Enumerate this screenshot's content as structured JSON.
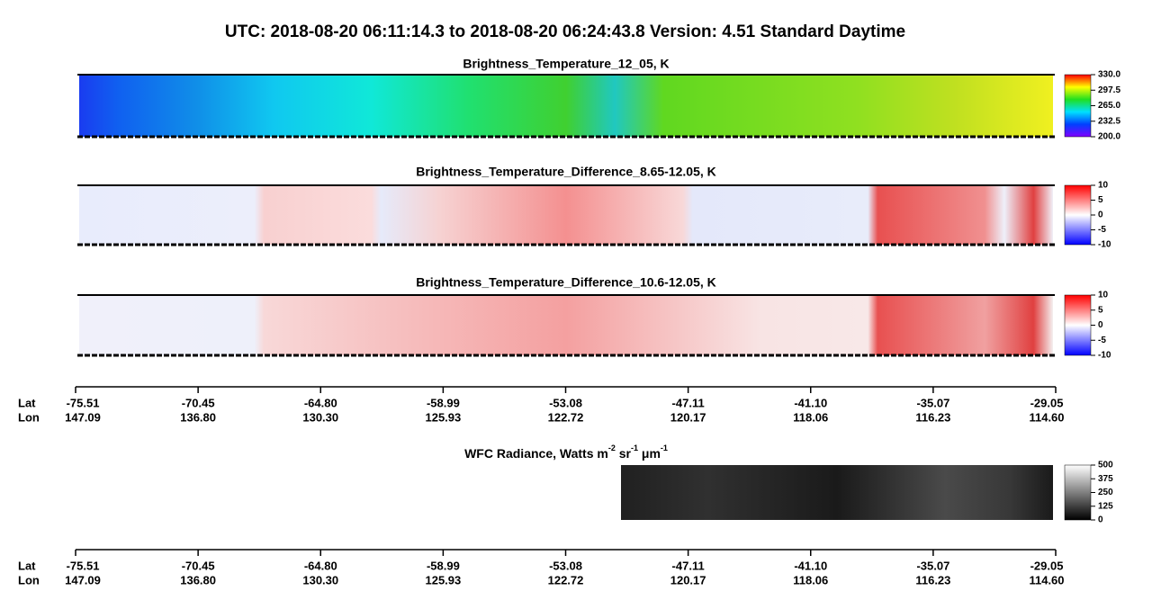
{
  "title": "UTC:  2018-08-20   06:11:14.3  to  2018-08-20   06:24:43.8    Version: 4.51  Standard Daytime",
  "panels": [
    {
      "title": "Brightness_Temperature_12_05, K",
      "colorbar": {
        "lim": [
          200,
          330
        ],
        "ticks": [
          {
            "value": 330,
            "label": "330.0"
          },
          {
            "value": 297.5,
            "label": "297.5"
          },
          {
            "value": 265,
            "label": "265.0"
          },
          {
            "value": 232.5,
            "label": "232.5"
          },
          {
            "value": 200,
            "label": "200.0"
          }
        ]
      }
    },
    {
      "title": "Brightness_Temperature_Difference_8.65-12.05, K",
      "colorbar": {
        "lim": [
          -10,
          10
        ],
        "ticks": [
          10,
          5,
          0,
          -5,
          -10
        ]
      }
    },
    {
      "title": "Brightness_Temperature_Difference_10.6-12.05, K",
      "colorbar": {
        "lim": [
          -10,
          10
        ],
        "ticks": [
          10,
          5,
          0,
          -5,
          -10
        ]
      }
    },
    {
      "title_parts": [
        "WFC Radiance, Watts m",
        "-2",
        " sr",
        "-1",
        " μm",
        "-1"
      ],
      "colorbar": {
        "lim": [
          0,
          500
        ],
        "ticks": [
          500,
          375,
          250,
          125,
          0
        ]
      }
    }
  ],
  "axes": [
    {
      "lat_label": "Lat",
      "lon_label": "Lon",
      "lat": [
        "-75.51",
        "-70.45",
        "-64.80",
        "-58.99",
        "-53.08",
        "-47.11",
        "-41.10",
        "-35.07",
        "-29.05"
      ],
      "lon": [
        "147.09",
        "136.80",
        "130.30",
        "125.93",
        "122.72",
        "120.17",
        "118.06",
        "116.23",
        "114.60"
      ]
    },
    {
      "lat_label": "Lat",
      "lon_label": "Lon",
      "lat": [
        "-75.51",
        "-70.45",
        "-64.80",
        "-58.99",
        "-53.08",
        "-47.11",
        "-41.10",
        "-35.07",
        "-29.05"
      ],
      "lon": [
        "147.09",
        "136.80",
        "130.30",
        "125.93",
        "122.72",
        "120.17",
        "118.06",
        "116.23",
        "114.60"
      ]
    }
  ]
}
